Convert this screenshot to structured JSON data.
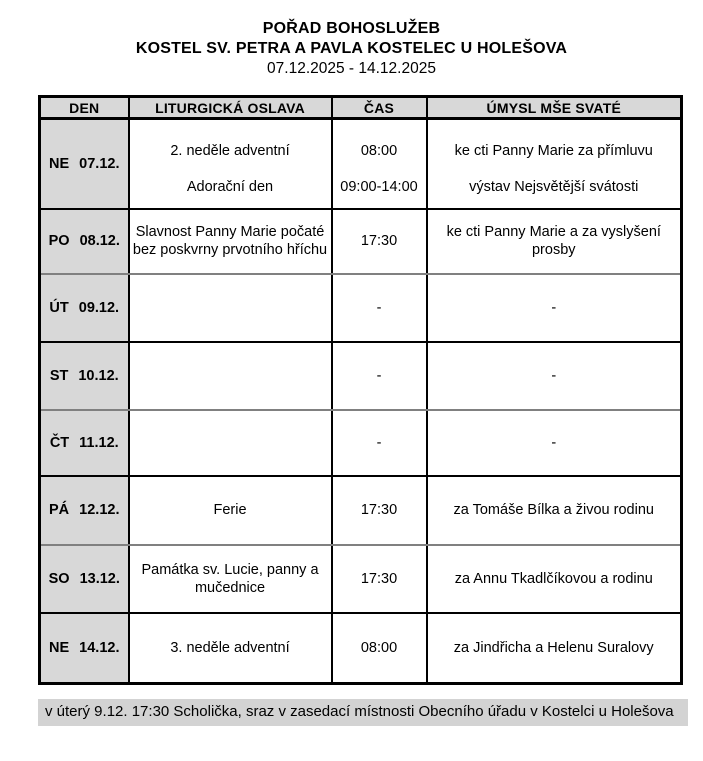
{
  "document": {
    "title": "POŘAD BOHOSLUŽEB",
    "subtitle": "KOSTEL SV. PETRA A PAVLA KOSTELEC U HOLEŠOVA",
    "date_range": "07.12.2025 - 14.12.2025"
  },
  "table": {
    "headers": {
      "day": "DEN",
      "celebration": "LITURGICKÁ OSLAVA",
      "time": "ČAS",
      "intention": "ÚMYSL MŠE SVATÉ"
    },
    "rows": [
      {
        "day": "NE",
        "date": "07.12.",
        "events": [
          {
            "celebration": "2. neděle adventní",
            "time": "08:00",
            "intention": "ke cti Panny Marie za přímluvu"
          },
          {
            "celebration": "Adorační den",
            "time": "09:00-14:00",
            "intention": "výstav Nejsvětější svátosti"
          }
        ]
      },
      {
        "day": "PO",
        "date": "08.12.",
        "events": [
          {
            "celebration": "Slavnost Panny Marie počaté bez poskvrny prvotního hříchu",
            "time": "17:30",
            "intention": "ke cti Panny Marie a za vyslyšení prosby"
          }
        ]
      },
      {
        "day": "ÚT",
        "date": "09.12.",
        "events": [
          {
            "celebration": "",
            "time": "-",
            "intention": "-"
          }
        ]
      },
      {
        "day": "ST",
        "date": "10.12.",
        "events": [
          {
            "celebration": "",
            "time": "-",
            "intention": "-"
          }
        ]
      },
      {
        "day": "ČT",
        "date": "11.12.",
        "events": [
          {
            "celebration": "",
            "time": "-",
            "intention": "-"
          }
        ]
      },
      {
        "day": "PÁ",
        "date": "12.12.",
        "events": [
          {
            "celebration": "Ferie",
            "time": "17:30",
            "intention": "za Tomáše Bílka a živou rodinu"
          }
        ]
      },
      {
        "day": "SO",
        "date": "13.12.",
        "events": [
          {
            "celebration": "Památka sv. Lucie, panny a mučednice",
            "time": "17:30",
            "intention": "za Annu Tkadlčíkovou a rodinu"
          }
        ]
      },
      {
        "day": "NE",
        "date": "14.12.",
        "events": [
          {
            "celebration": "3. neděle adventní",
            "time": "08:00",
            "intention": "za Jindřicha a Helenu Suralovy"
          }
        ]
      }
    ]
  },
  "footer": {
    "note": "v úterý 9.12. 17:30 Scholička, sraz v zasedací místnosti Obecního úřadu v Kostelci u Holešova"
  },
  "colors": {
    "shade_cell": "#d8d8d8",
    "shade_note": "#d3d3d3",
    "border_black": "#000000",
    "border_gray": "#808080"
  }
}
